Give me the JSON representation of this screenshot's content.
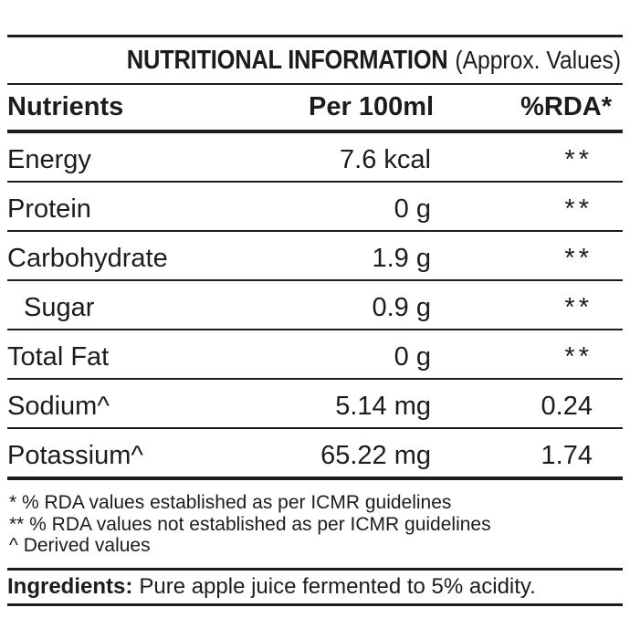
{
  "ink_color": "#1c1c1c",
  "title": {
    "main": "NUTRITIONAL INFORMATION",
    "suffix": "(Approx. Values)"
  },
  "table": {
    "columns": [
      "Nutrients",
      "Per 100ml",
      "%RDA*"
    ],
    "rows": [
      {
        "nutrient": "Energy",
        "per_100ml": "7.6 kcal",
        "rda": "**",
        "indent": false
      },
      {
        "nutrient": "Protein",
        "per_100ml": "0 g",
        "rda": "**",
        "indent": false
      },
      {
        "nutrient": "Carbohydrate",
        "per_100ml": "1.9 g",
        "rda": "**",
        "indent": false
      },
      {
        "nutrient": "Sugar",
        "per_100ml": "0.9 g",
        "rda": "**",
        "indent": true
      },
      {
        "nutrient": "Total Fat",
        "per_100ml": "0 g",
        "rda": "**",
        "indent": false
      },
      {
        "nutrient": "Sodium^",
        "per_100ml": "5.14 mg",
        "rda": "0.24",
        "indent": false
      },
      {
        "nutrient": "Potassium^",
        "per_100ml": "65.22 mg",
        "rda": "1.74",
        "indent": false
      }
    ]
  },
  "footnotes": [
    "* % RDA values established as per ICMR guidelines",
    "** % RDA values not established as per ICMR guidelines",
    "^ Derived values"
  ],
  "ingredients": {
    "label": "Ingredients:",
    "text": "Pure apple juice fermented to 5% acidity."
  }
}
